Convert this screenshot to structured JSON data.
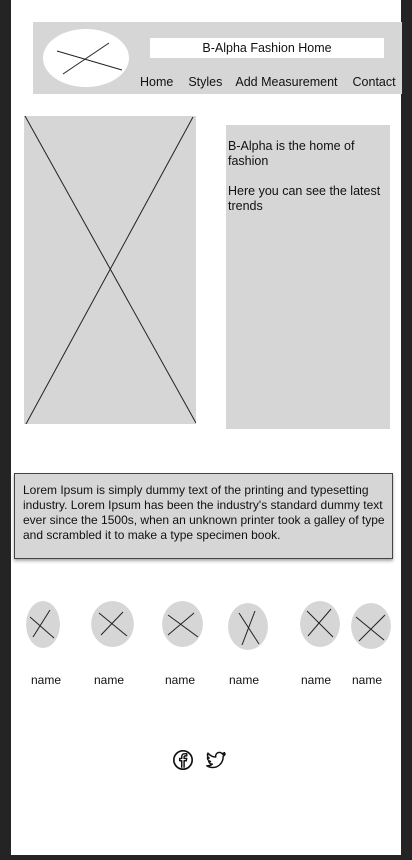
{
  "header": {
    "title": "B-Alpha Fashion Home",
    "logo_icon": "logo-placeholder-icon",
    "nav": [
      {
        "label": "Home"
      },
      {
        "label": "Styles"
      },
      {
        "label": "Add Measurement"
      },
      {
        "label": "Contact"
      }
    ]
  },
  "hero": {
    "image_icon": "image-placeholder-icon"
  },
  "intro": {
    "line1": "B-Alpha is the home of fashion",
    "line2": "Here you can see the latest trends"
  },
  "lorem": {
    "text": "Lorem Ipsum is simply dummy text of the printing and typesetting industry. Lorem Ipsum has been the industry's standard dummy text ever since the 1500s, when an unknown printer took a galley of type and scrambled it to make a type specimen book."
  },
  "profiles": [
    {
      "name": "name"
    },
    {
      "name": "name"
    },
    {
      "name": "name"
    },
    {
      "name": "name"
    },
    {
      "name": "name"
    },
    {
      "name": "name"
    }
  ],
  "social": [
    {
      "icon": "facebook-icon"
    },
    {
      "icon": "twitter-icon"
    }
  ],
  "colors": {
    "placeholder": "#d6d6d6",
    "background": "#ffffff",
    "outer": "#242424"
  }
}
